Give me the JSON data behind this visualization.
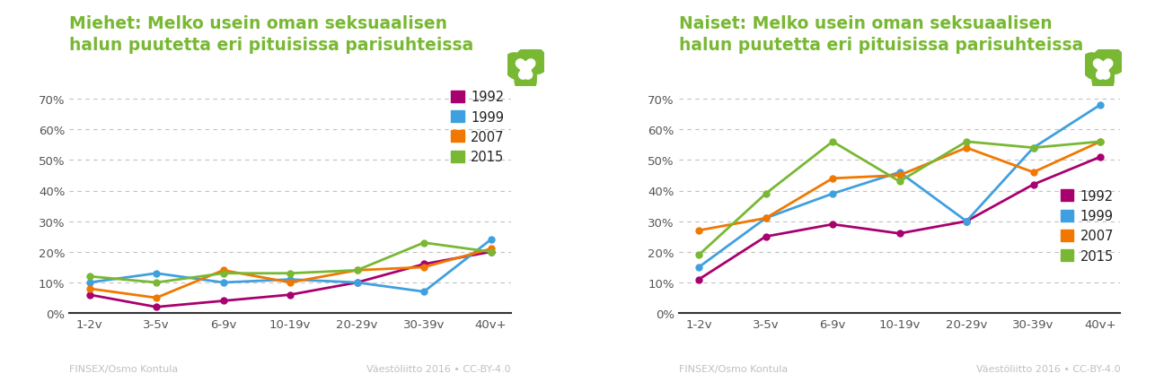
{
  "categories": [
    "1-2v",
    "3-5v",
    "6-9v",
    "10-19v",
    "20-29v",
    "30-39v",
    "40v+"
  ],
  "men": {
    "title": "Miehet: Melko usein oman seksuaalisen\nhalun puutetta eri pituisissa parisuhteissa",
    "series": {
      "1992": [
        0.06,
        0.02,
        0.04,
        0.06,
        0.1,
        0.16,
        0.2
      ],
      "1999": [
        0.1,
        0.13,
        0.1,
        0.11,
        0.1,
        0.07,
        0.24
      ],
      "2007": [
        0.08,
        0.05,
        0.14,
        0.1,
        0.14,
        0.15,
        0.21
      ],
      "2015": [
        0.12,
        0.1,
        0.13,
        0.13,
        0.14,
        0.23,
        0.2
      ]
    }
  },
  "women": {
    "title": "Naiset: Melko usein oman seksuaalisen\nhalun puutetta eri pituisissa parisuhteissa",
    "series": {
      "1992": [
        0.11,
        0.25,
        0.29,
        0.26,
        0.3,
        0.42,
        0.51
      ],
      "1999": [
        0.15,
        0.31,
        0.39,
        0.46,
        0.3,
        0.54,
        0.68
      ],
      "2007": [
        0.27,
        0.31,
        0.44,
        0.45,
        0.54,
        0.46,
        0.56
      ],
      "2015": [
        0.19,
        0.39,
        0.56,
        0.43,
        0.56,
        0.54,
        0.56
      ]
    }
  },
  "colors": {
    "1992": "#a8006e",
    "1999": "#3fa0e0",
    "2007": "#f07800",
    "2015": "#78b833"
  },
  "title_color": "#78b833",
  "title_fontsize": 13.5,
  "legend_years": [
    "1992",
    "1999",
    "2007",
    "2015"
  ],
  "legend_text_color": "#222222",
  "footer_left": "FINSEX/Osmo Kontula",
  "footer_right": "Väestöliitto 2016 • CC-BY-4.0",
  "ylim": [
    0,
    0.75
  ],
  "yticks": [
    0.0,
    0.1,
    0.2,
    0.3,
    0.4,
    0.5,
    0.6,
    0.7
  ],
  "ytick_labels": [
    "0%",
    "10%",
    "20%",
    "30%",
    "40%",
    "50%",
    "60%",
    "70%"
  ],
  "background_color": "#ffffff",
  "grid_color": "#c0c0c0",
  "marker_size": 5,
  "line_width": 2.0
}
